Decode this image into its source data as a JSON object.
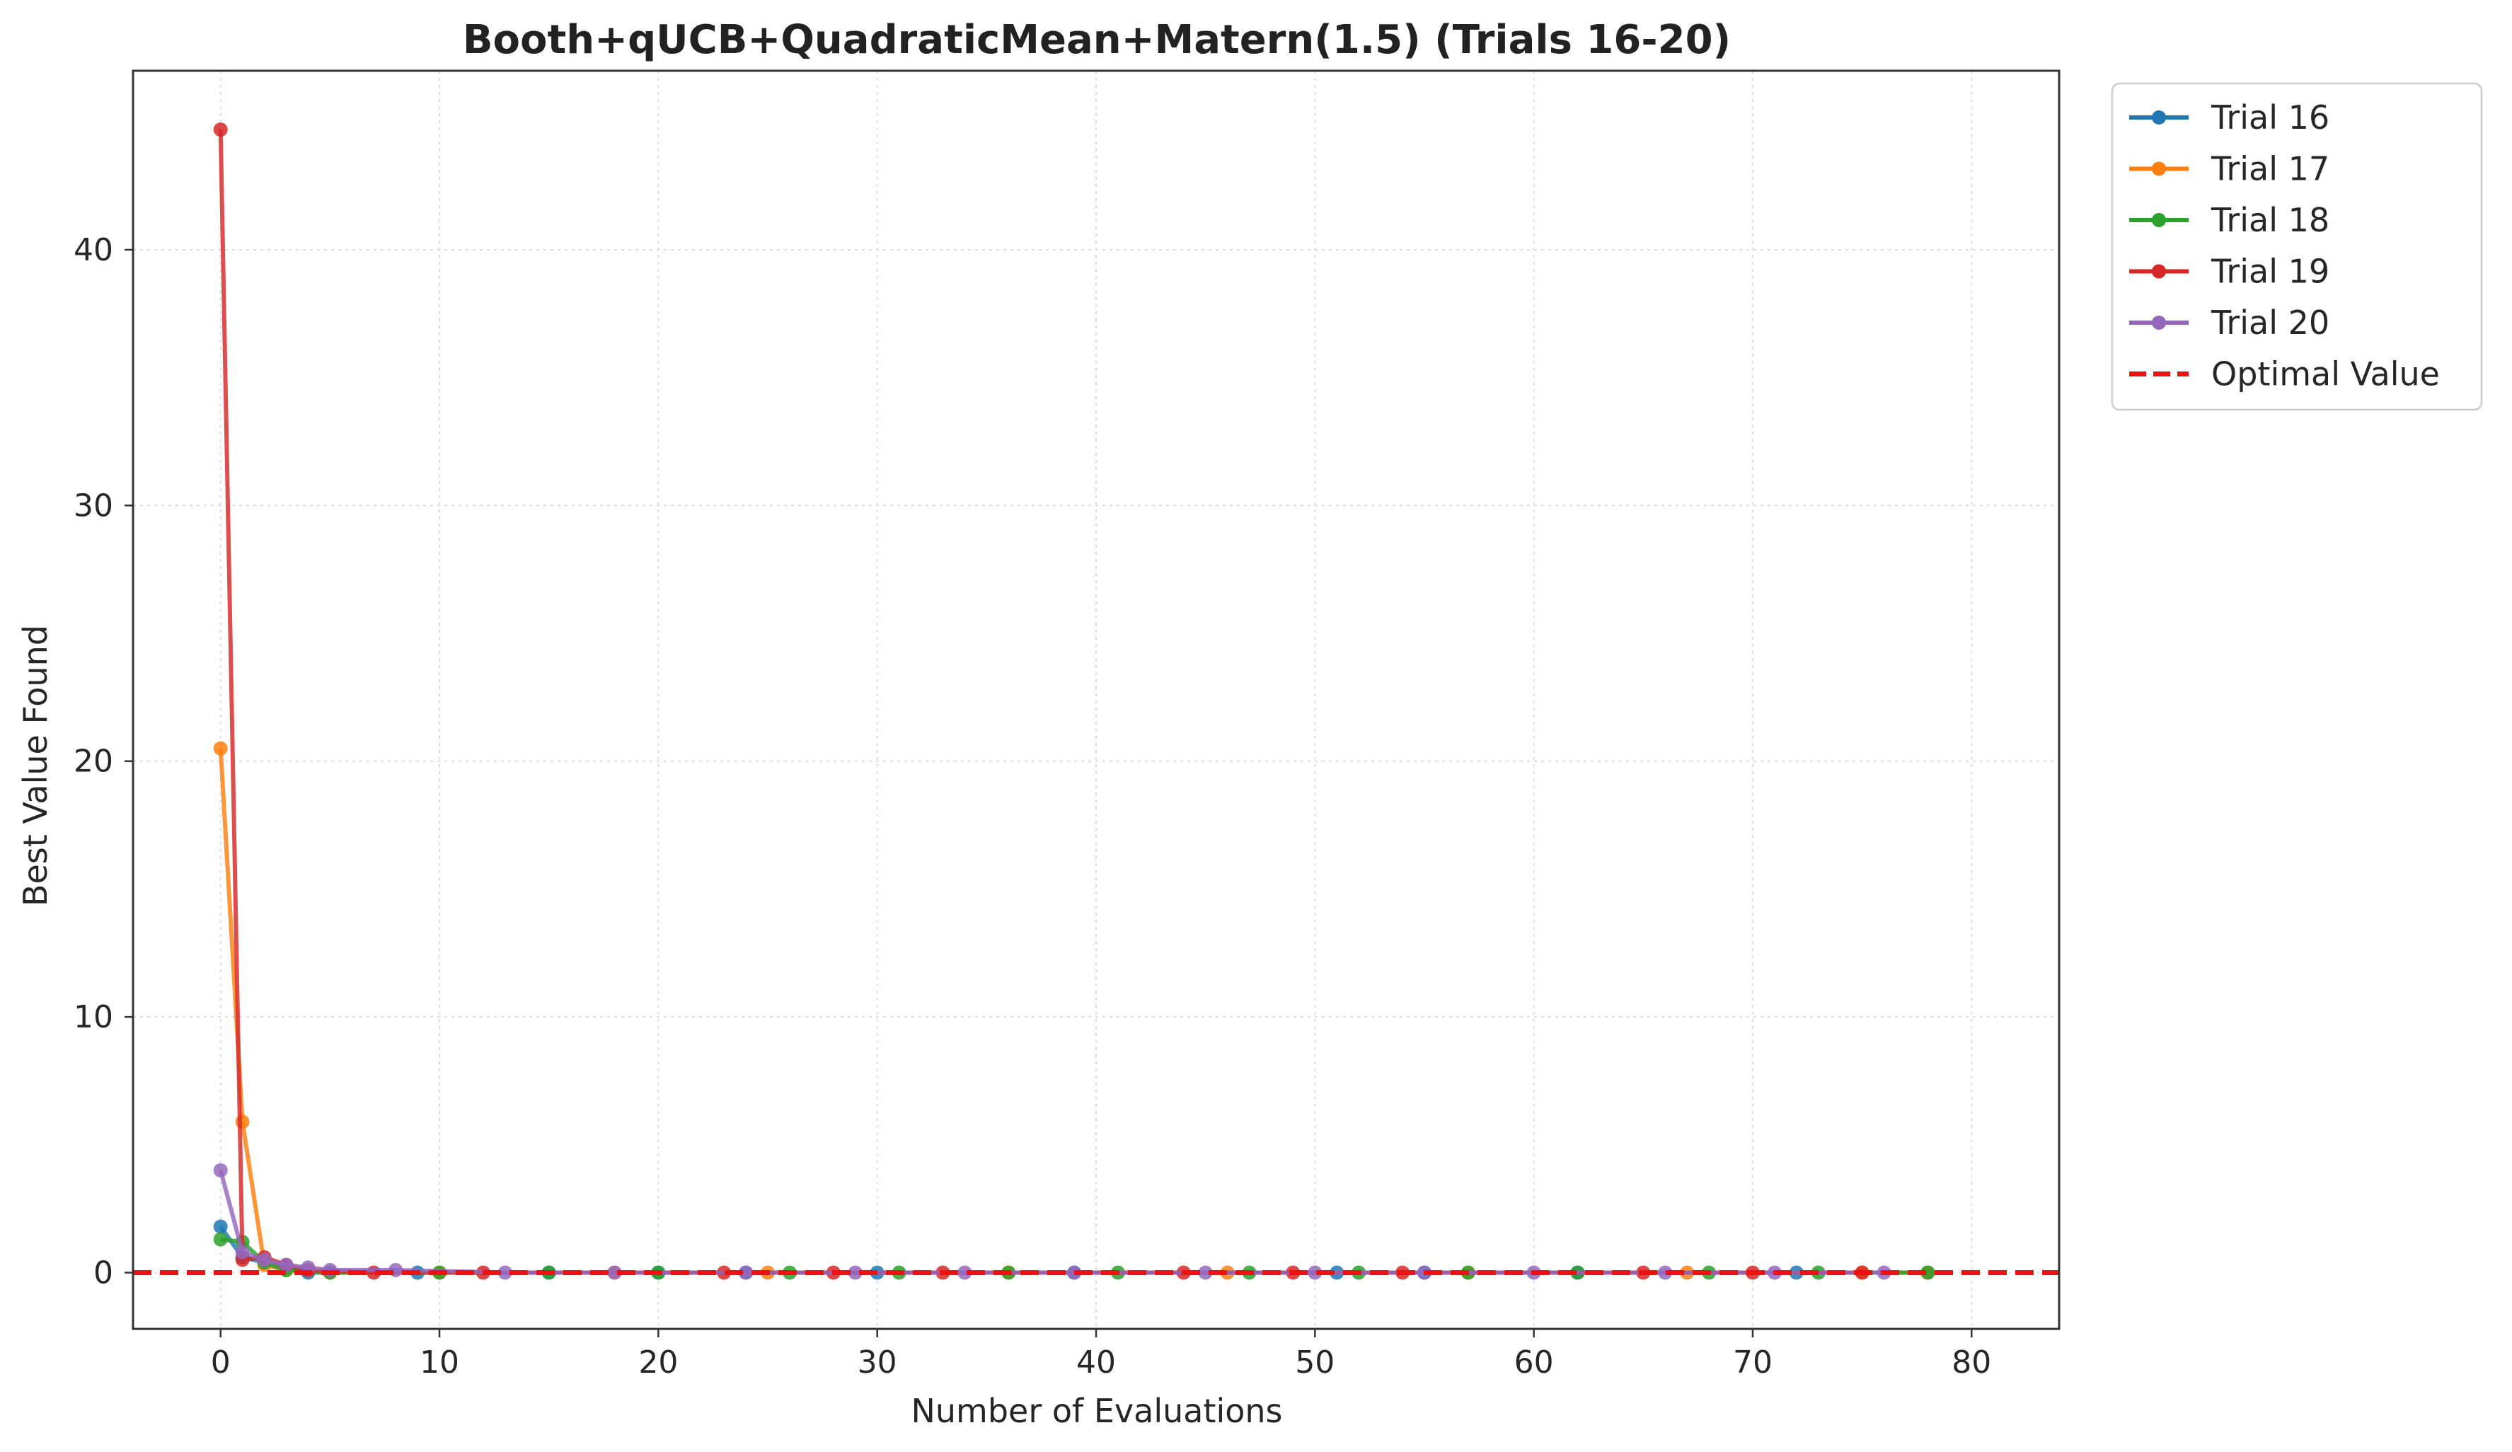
{
  "chart_data": {
    "type": "line",
    "title": "Booth+qUCB+QuadraticMean+Matern(1.5) (Trials 16-20)",
    "xlabel": "Number of Evaluations",
    "ylabel": "Best Value Found",
    "xlim": [
      -4,
      84
    ],
    "ylim": [
      -2.2,
      47.0
    ],
    "xticks": [
      0,
      10,
      20,
      30,
      40,
      50,
      60,
      70,
      80
    ],
    "yticks": [
      0,
      10,
      20,
      30,
      40
    ],
    "grid": true,
    "legend_position": "outside-top-right",
    "optimal_value": 0,
    "optimal_label": "Optimal Value",
    "optimal_color": "#ee1111",
    "series": [
      {
        "name": "Trial 16",
        "color": "#1f77b4",
        "points": [
          [
            0,
            1.8
          ],
          [
            1,
            0.6
          ],
          [
            2,
            0.4
          ],
          [
            3,
            0.2
          ],
          [
            4,
            0.0
          ],
          [
            9,
            0.0
          ],
          [
            15,
            0.0
          ],
          [
            20,
            0.0
          ],
          [
            24,
            0.0
          ],
          [
            30,
            0.0
          ],
          [
            39,
            0.0
          ],
          [
            51,
            0.0
          ],
          [
            55,
            0.0
          ],
          [
            62,
            0.0
          ],
          [
            72,
            0.0
          ],
          [
            78,
            0.0
          ]
        ]
      },
      {
        "name": "Trial 17",
        "color": "#ff7f0e",
        "points": [
          [
            0,
            20.5
          ],
          [
            1,
            5.9
          ],
          [
            2,
            0.3
          ],
          [
            3,
            0.1
          ],
          [
            5,
            0.0
          ],
          [
            10,
            0.0
          ],
          [
            18,
            0.0
          ],
          [
            25,
            0.0
          ],
          [
            36,
            0.0
          ],
          [
            46,
            0.0
          ],
          [
            57,
            0.0
          ],
          [
            67,
            0.0
          ],
          [
            75,
            0.0
          ],
          [
            78,
            0.0
          ]
        ]
      },
      {
        "name": "Trial 18",
        "color": "#2ca02c",
        "points": [
          [
            0,
            1.3
          ],
          [
            1,
            1.2
          ],
          [
            2,
            0.4
          ],
          [
            3,
            0.1
          ],
          [
            5,
            0.0
          ],
          [
            10,
            0.0
          ],
          [
            15,
            0.0
          ],
          [
            20,
            0.0
          ],
          [
            26,
            0.0
          ],
          [
            31,
            0.0
          ],
          [
            36,
            0.0
          ],
          [
            41,
            0.0
          ],
          [
            47,
            0.0
          ],
          [
            52,
            0.0
          ],
          [
            57,
            0.0
          ],
          [
            62,
            0.0
          ],
          [
            68,
            0.0
          ],
          [
            73,
            0.0
          ],
          [
            78,
            0.0
          ]
        ]
      },
      {
        "name": "Trial 19",
        "color": "#d62728",
        "points": [
          [
            0,
            44.7
          ],
          [
            1,
            0.5
          ],
          [
            2,
            0.6
          ],
          [
            3,
            0.3
          ],
          [
            4,
            0.1
          ],
          [
            7,
            0.0
          ],
          [
            12,
            0.0
          ],
          [
            23,
            0.0
          ],
          [
            28,
            0.0
          ],
          [
            33,
            0.0
          ],
          [
            44,
            0.0
          ],
          [
            49,
            0.0
          ],
          [
            54,
            0.0
          ],
          [
            65,
            0.0
          ],
          [
            70,
            0.0
          ],
          [
            75,
            0.0
          ]
        ]
      },
      {
        "name": "Trial 20",
        "color": "#9467bd",
        "points": [
          [
            0,
            4.0
          ],
          [
            1,
            0.8
          ],
          [
            2,
            0.5
          ],
          [
            3,
            0.3
          ],
          [
            4,
            0.2
          ],
          [
            5,
            0.1
          ],
          [
            8,
            0.1
          ],
          [
            13,
            0.0
          ],
          [
            18,
            0.0
          ],
          [
            24,
            0.0
          ],
          [
            29,
            0.0
          ],
          [
            34,
            0.0
          ],
          [
            39,
            0.0
          ],
          [
            45,
            0.0
          ],
          [
            50,
            0.0
          ],
          [
            55,
            0.0
          ],
          [
            60,
            0.0
          ],
          [
            66,
            0.0
          ],
          [
            71,
            0.0
          ],
          [
            76,
            0.0
          ]
        ]
      }
    ]
  }
}
